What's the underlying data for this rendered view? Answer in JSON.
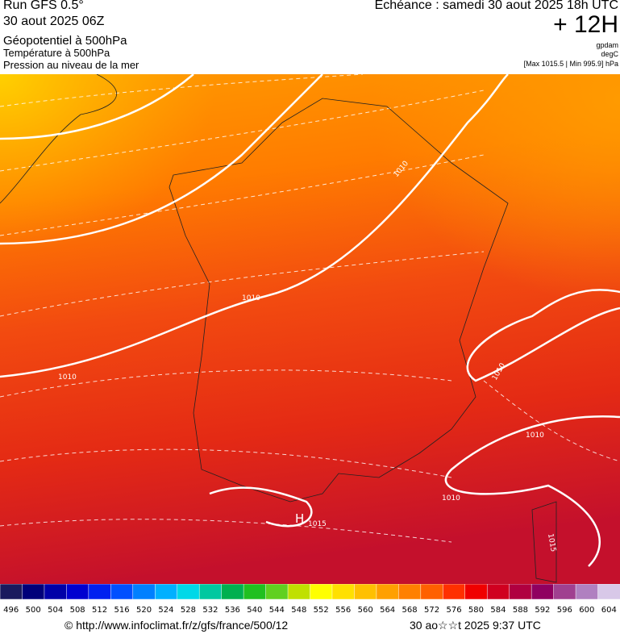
{
  "header": {
    "run": "Run GFS 0.5°",
    "date": "30 aout 2025 06Z",
    "fields": [
      "Géopotentiel à 500hPa",
      "Température à 500hPa",
      "Pression au niveau de la mer"
    ],
    "echeance": "Echéance : samedi 30 aout 2025 18h UTC",
    "lead": "+ 12H",
    "units": [
      "gpdam",
      "degC",
      "[Max 1015.5 | Min 995.9] hPa"
    ]
  },
  "map": {
    "isobar_labels": [
      "1010",
      "1010",
      "1010",
      "1010",
      "1010",
      "1010",
      "1015",
      "1015"
    ],
    "high": "H"
  },
  "legend": {
    "ticks": [
      496,
      500,
      504,
      508,
      512,
      516,
      520,
      524,
      528,
      532,
      536,
      540,
      544,
      548,
      552,
      556,
      560,
      564,
      568,
      572,
      576,
      580,
      584,
      588,
      592,
      596,
      600,
      604
    ],
    "colors": [
      "#1a1a5e",
      "#00007a",
      "#0000a8",
      "#0000d0",
      "#0020f0",
      "#0050ff",
      "#0080ff",
      "#00b0ff",
      "#00d8e8",
      "#00c8a0",
      "#00b050",
      "#20c020",
      "#60d020",
      "#c0e000",
      "#ffff00",
      "#ffe000",
      "#ffc000",
      "#ffa000",
      "#ff8000",
      "#ff6000",
      "#ff3000",
      "#f00000",
      "#d00020",
      "#b00040",
      "#900060",
      "#a04090",
      "#b080c0",
      "#d8c8e8"
    ]
  },
  "footer": {
    "source": "© http://www.infoclimat.fr/z/gfs/france/500/12",
    "time": "30 ao☆☆t 2025  9:37 UTC"
  }
}
